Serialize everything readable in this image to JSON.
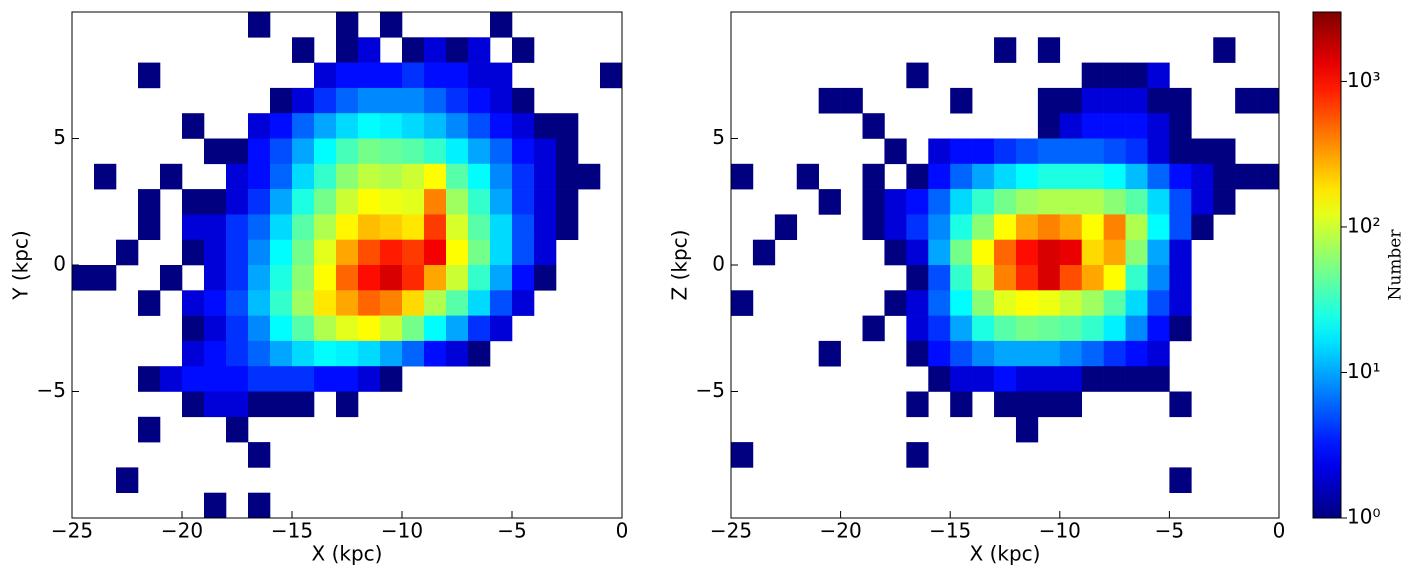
{
  "chart_data": [
    {
      "type": "heatmap",
      "xlabel": "X (kpc)",
      "ylabel": "Y (kpc)",
      "xlim": [
        -25,
        0
      ],
      "ylim": [
        -10,
        10
      ],
      "xticks": [
        {
          "value": -25,
          "label": "−25"
        },
        {
          "value": -20,
          "label": "−20"
        },
        {
          "value": -15,
          "label": "−15"
        },
        {
          "value": -10,
          "label": "−10"
        },
        {
          "value": -5,
          "label": "−5"
        },
        0
      ],
      "yticks": [
        {
          "value": -5,
          "label": "−5"
        },
        0,
        5
      ],
      "xbins": [
        -25,
        -24,
        -23,
        -22,
        -21,
        -20,
        -19,
        -18,
        -17,
        -16,
        -15,
        -14,
        -13,
        -12,
        -11,
        -10,
        -9,
        -8,
        -7,
        -6,
        -5,
        -4,
        -3,
        -2,
        -1,
        0
      ],
      "ybins": [
        10,
        9,
        8,
        7,
        6,
        5,
        4,
        3,
        2,
        1,
        0,
        -1,
        -2,
        -3,
        -4,
        -5,
        -6,
        -7,
        -8,
        -9,
        -10
      ],
      "z": [
        [
          null,
          null,
          null,
          null,
          null,
          null,
          null,
          null,
          1,
          null,
          null,
          null,
          1,
          null,
          1,
          null,
          null,
          null,
          null,
          1,
          null,
          null,
          null,
          null,
          null
        ],
        [
          null,
          null,
          null,
          null,
          null,
          null,
          null,
          null,
          null,
          null,
          1,
          null,
          1,
          2,
          null,
          1,
          2,
          1,
          2,
          null,
          1,
          null,
          null,
          null,
          null
        ],
        [
          null,
          null,
          null,
          1,
          null,
          null,
          null,
          null,
          null,
          null,
          null,
          2,
          3,
          3,
          3,
          4,
          3,
          3,
          2,
          2,
          null,
          null,
          null,
          null,
          1
        ],
        [
          null,
          null,
          null,
          null,
          null,
          null,
          null,
          null,
          null,
          1,
          2,
          4,
          6,
          8,
          8,
          8,
          6,
          4,
          3,
          2,
          1,
          null,
          null,
          null,
          null
        ],
        [
          null,
          null,
          null,
          null,
          null,
          1,
          null,
          null,
          2,
          3,
          6,
          10,
          15,
          20,
          18,
          15,
          12,
          8,
          5,
          3,
          2,
          1,
          1,
          null,
          null
        ],
        [
          null,
          null,
          null,
          null,
          null,
          null,
          1,
          1,
          3,
          5,
          10,
          20,
          35,
          50,
          45,
          40,
          30,
          18,
          10,
          6,
          3,
          2,
          1,
          null,
          null
        ],
        [
          null,
          1,
          null,
          null,
          1,
          null,
          null,
          2,
          3,
          6,
          15,
          30,
          60,
          90,
          80,
          100,
          150,
          40,
          20,
          8,
          4,
          2,
          1,
          1,
          null
        ],
        [
          null,
          null,
          null,
          1,
          null,
          1,
          1,
          2,
          4,
          10,
          25,
          50,
          100,
          150,
          130,
          120,
          400,
          70,
          30,
          10,
          4,
          2,
          1,
          null,
          null
        ],
        [
          null,
          null,
          null,
          1,
          null,
          2,
          2,
          4,
          6,
          15,
          40,
          80,
          160,
          250,
          220,
          180,
          700,
          110,
          40,
          15,
          5,
          2,
          1,
          null,
          null
        ],
        [
          null,
          null,
          1,
          null,
          null,
          1,
          2,
          4,
          8,
          20,
          50,
          120,
          300,
          600,
          900,
          700,
          1200,
          150,
          50,
          15,
          5,
          2,
          null,
          null,
          null
        ],
        [
          1,
          1,
          null,
          null,
          1,
          null,
          2,
          4,
          10,
          25,
          60,
          150,
          500,
          1000,
          1500,
          800,
          300,
          100,
          30,
          10,
          3,
          1,
          null,
          null,
          null
        ],
        [
          null,
          null,
          null,
          1,
          null,
          2,
          3,
          5,
          12,
          30,
          70,
          180,
          300,
          500,
          400,
          200,
          80,
          40,
          15,
          5,
          2,
          null,
          null,
          null,
          null
        ],
        [
          null,
          null,
          null,
          null,
          null,
          1,
          2,
          4,
          8,
          20,
          40,
          80,
          120,
          150,
          100,
          50,
          20,
          10,
          4,
          2,
          null,
          null,
          null,
          null,
          null
        ],
        [
          null,
          null,
          null,
          null,
          null,
          2,
          3,
          4,
          6,
          10,
          15,
          20,
          18,
          15,
          10,
          6,
          3,
          2,
          1,
          null,
          null,
          null,
          null,
          null,
          null
        ],
        [
          null,
          null,
          null,
          1,
          2,
          3,
          3,
          3,
          4,
          4,
          4,
          3,
          3,
          2,
          1,
          null,
          null,
          null,
          null,
          null,
          null,
          null,
          null,
          null,
          null
        ],
        [
          null,
          null,
          null,
          null,
          null,
          1,
          2,
          2,
          1,
          1,
          1,
          null,
          1,
          null,
          null,
          null,
          null,
          null,
          null,
          null,
          null,
          null,
          null,
          null,
          null
        ],
        [
          null,
          null,
          null,
          1,
          null,
          null,
          null,
          1,
          null,
          null,
          null,
          null,
          null,
          null,
          null,
          null,
          null,
          null,
          null,
          null,
          null,
          null,
          null,
          null,
          null
        ],
        [
          null,
          null,
          null,
          null,
          null,
          null,
          null,
          null,
          1,
          null,
          null,
          null,
          null,
          null,
          null,
          null,
          null,
          null,
          null,
          null,
          null,
          null,
          null,
          null,
          null
        ],
        [
          null,
          null,
          1,
          null,
          null,
          null,
          null,
          null,
          null,
          null,
          null,
          null,
          null,
          null,
          null,
          null,
          null,
          null,
          null,
          null,
          null,
          null,
          null,
          null,
          null
        ],
        [
          null,
          null,
          null,
          null,
          null,
          null,
          1,
          null,
          1,
          null,
          null,
          null,
          null,
          null,
          null,
          null,
          null,
          null,
          null,
          null,
          null,
          null,
          null,
          null,
          null
        ]
      ]
    },
    {
      "type": "heatmap",
      "xlabel": "X (kpc)",
      "ylabel": "Z (kpc)",
      "xlim": [
        -25,
        0
      ],
      "ylim": [
        -10,
        10
      ],
      "xticks": [
        {
          "value": -25,
          "label": "−25"
        },
        {
          "value": -20,
          "label": "−20"
        },
        {
          "value": -15,
          "label": "−15"
        },
        {
          "value": -10,
          "label": "−10"
        },
        {
          "value": -5,
          "label": "−5"
        },
        0
      ],
      "yticks": [
        {
          "value": -5,
          "label": "−5"
        },
        0,
        5
      ],
      "xbins": [
        -25,
        -24,
        -23,
        -22,
        -21,
        -20,
        -19,
        -18,
        -17,
        -16,
        -15,
        -14,
        -13,
        -12,
        -11,
        -10,
        -9,
        -8,
        -7,
        -6,
        -5,
        -4,
        -3,
        -2,
        -1,
        0
      ],
      "ybins": [
        10,
        9,
        8,
        7,
        6,
        5,
        4,
        3,
        2,
        1,
        0,
        -1,
        -2,
        -3,
        -4,
        -5,
        -6,
        -7,
        -8,
        -9,
        -10
      ],
      "z": [
        [
          null,
          null,
          null,
          null,
          null,
          null,
          null,
          null,
          null,
          null,
          null,
          null,
          null,
          null,
          null,
          null,
          null,
          null,
          null,
          null,
          null,
          null,
          null,
          null,
          null
        ],
        [
          null,
          null,
          null,
          null,
          null,
          null,
          null,
          null,
          null,
          null,
          null,
          null,
          1,
          null,
          1,
          null,
          null,
          null,
          null,
          null,
          null,
          null,
          1,
          null,
          null
        ],
        [
          null,
          null,
          null,
          null,
          null,
          null,
          null,
          null,
          1,
          null,
          null,
          null,
          null,
          null,
          null,
          null,
          1,
          1,
          1,
          2,
          null,
          null,
          null,
          null,
          null
        ],
        [
          null,
          null,
          null,
          null,
          1,
          1,
          null,
          null,
          null,
          null,
          1,
          null,
          null,
          null,
          1,
          1,
          2,
          2,
          2,
          1,
          1,
          null,
          null,
          1,
          1
        ],
        [
          null,
          null,
          null,
          null,
          null,
          null,
          1,
          null,
          null,
          null,
          null,
          null,
          null,
          null,
          1,
          2,
          3,
          3,
          3,
          2,
          1,
          null,
          null,
          null,
          null
        ],
        [
          null,
          null,
          null,
          null,
          null,
          null,
          null,
          1,
          null,
          2,
          3,
          3,
          4,
          5,
          6,
          6,
          6,
          5,
          4,
          2,
          1,
          1,
          1,
          null,
          null
        ],
        [
          1,
          null,
          null,
          1,
          null,
          null,
          1,
          null,
          1,
          3,
          6,
          10,
          15,
          20,
          25,
          25,
          25,
          20,
          12,
          6,
          3,
          2,
          1,
          1,
          1
        ],
        [
          null,
          null,
          null,
          null,
          1,
          null,
          1,
          2,
          3,
          6,
          15,
          30,
          50,
          70,
          80,
          80,
          80,
          60,
          40,
          15,
          5,
          2,
          1,
          null,
          null
        ],
        [
          null,
          null,
          1,
          null,
          null,
          null,
          1,
          2,
          4,
          8,
          25,
          60,
          150,
          300,
          400,
          300,
          150,
          400,
          80,
          20,
          5,
          1,
          null,
          null,
          null
        ],
        [
          null,
          1,
          null,
          null,
          null,
          null,
          null,
          1,
          2,
          10,
          50,
          150,
          500,
          1000,
          1500,
          1300,
          200,
          300,
          60,
          10,
          2,
          null,
          null,
          null,
          null
        ],
        [
          null,
          null,
          null,
          null,
          null,
          null,
          null,
          null,
          1,
          5,
          30,
          100,
          400,
          800,
          1500,
          600,
          300,
          150,
          30,
          8,
          2,
          null,
          null,
          null,
          null
        ],
        [
          1,
          null,
          null,
          null,
          null,
          null,
          null,
          1,
          2,
          6,
          20,
          60,
          120,
          150,
          130,
          100,
          70,
          40,
          15,
          5,
          2,
          null,
          null,
          null,
          null
        ],
        [
          null,
          null,
          null,
          null,
          null,
          null,
          1,
          null,
          2,
          4,
          10,
          25,
          40,
          50,
          45,
          40,
          30,
          18,
          8,
          3,
          1,
          null,
          null,
          null,
          null
        ],
        [
          null,
          null,
          null,
          null,
          1,
          null,
          null,
          null,
          1,
          3,
          5,
          8,
          10,
          10,
          10,
          8,
          6,
          4,
          3,
          2,
          null,
          null,
          null,
          null,
          null
        ],
        [
          null,
          null,
          null,
          null,
          null,
          null,
          null,
          null,
          null,
          1,
          2,
          2,
          3,
          2,
          2,
          2,
          1,
          1,
          1,
          1,
          null,
          null,
          null,
          null,
          null
        ],
        [
          null,
          null,
          null,
          null,
          null,
          null,
          null,
          null,
          1,
          null,
          1,
          null,
          1,
          1,
          1,
          1,
          null,
          null,
          null,
          null,
          1,
          null,
          null,
          null,
          null
        ],
        [
          null,
          null,
          null,
          null,
          null,
          null,
          null,
          null,
          null,
          null,
          null,
          null,
          null,
          1,
          null,
          null,
          null,
          null,
          null,
          null,
          null,
          null,
          null,
          null,
          null
        ],
        [
          1,
          null,
          null,
          null,
          null,
          null,
          null,
          null,
          1,
          null,
          null,
          null,
          null,
          null,
          null,
          null,
          null,
          null,
          null,
          null,
          null,
          null,
          null,
          null,
          null
        ],
        [
          null,
          null,
          null,
          null,
          null,
          null,
          null,
          null,
          null,
          null,
          null,
          null,
          null,
          null,
          null,
          null,
          null,
          null,
          null,
          null,
          1,
          null,
          null,
          null,
          null
        ],
        [
          null,
          null,
          null,
          null,
          null,
          null,
          null,
          null,
          null,
          null,
          null,
          null,
          null,
          null,
          null,
          null,
          null,
          null,
          null,
          null,
          null,
          null,
          null,
          null,
          null
        ]
      ]
    }
  ],
  "colorbar": {
    "label": "Number",
    "scale": "log",
    "cmap": "jet",
    "clim": [
      1,
      3000
    ],
    "ticks": [
      {
        "value": 1,
        "label": "10⁰"
      },
      {
        "value": 10,
        "label": "10¹"
      },
      {
        "value": 100,
        "label": "10²"
      },
      {
        "value": 1000,
        "label": "10³"
      }
    ]
  }
}
